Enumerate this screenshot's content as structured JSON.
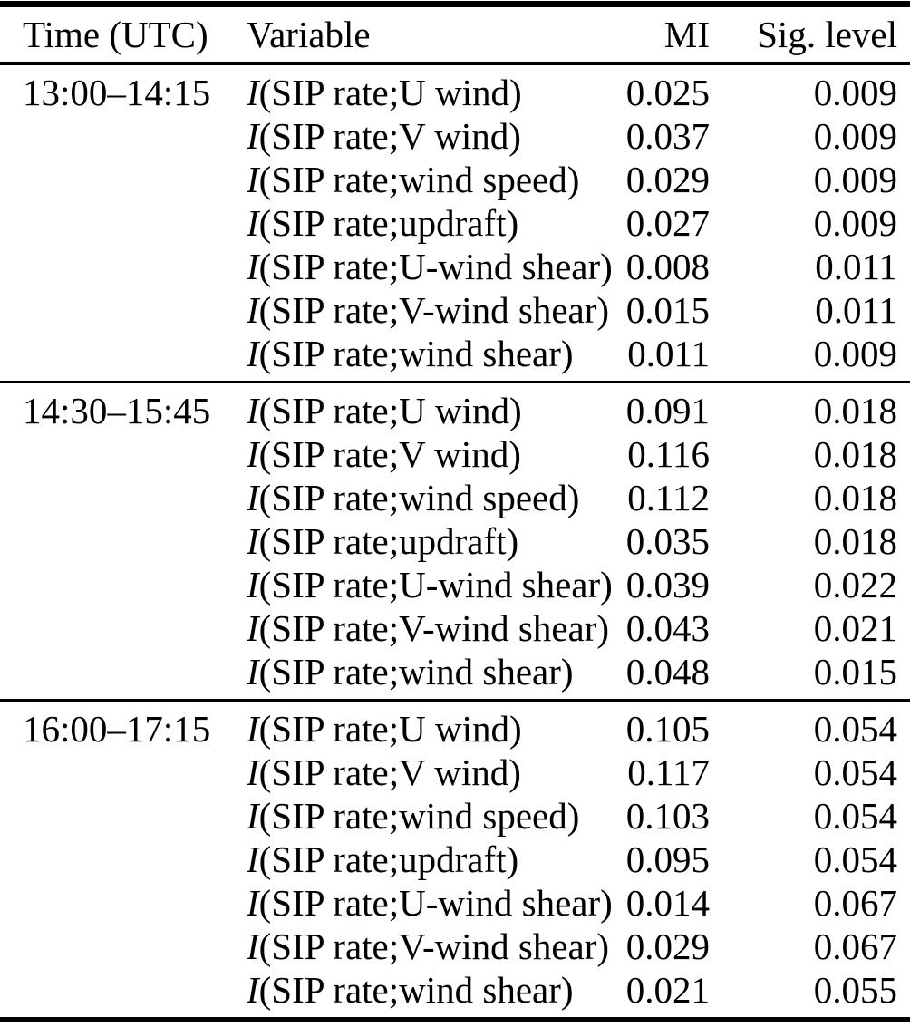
{
  "table": {
    "function_symbol": "I",
    "headers": [
      "Time (UTC)",
      "Variable",
      "MI",
      "Sig. level"
    ],
    "groups": [
      {
        "time": "13:00–14:15",
        "rows": [
          {
            "variable": "(SIP rate;U wind)",
            "mi": "0.025",
            "sig": "0.009"
          },
          {
            "variable": "(SIP rate;V wind)",
            "mi": "0.037",
            "sig": "0.009"
          },
          {
            "variable": "(SIP rate;wind speed)",
            "mi": "0.029",
            "sig": "0.009"
          },
          {
            "variable": "(SIP rate;updraft)",
            "mi": "0.027",
            "sig": "0.009"
          },
          {
            "variable": "(SIP rate;U-wind shear)",
            "mi": "0.008",
            "sig": "0.011"
          },
          {
            "variable": "(SIP rate;V-wind shear)",
            "mi": "0.015",
            "sig": "0.011"
          },
          {
            "variable": "(SIP rate;wind shear)",
            "mi": "0.011",
            "sig": "0.009"
          }
        ]
      },
      {
        "time": "14:30–15:45",
        "rows": [
          {
            "variable": "(SIP rate;U wind)",
            "mi": "0.091",
            "sig": "0.018"
          },
          {
            "variable": "(SIP rate;V wind)",
            "mi": "0.116",
            "sig": "0.018"
          },
          {
            "variable": "(SIP rate;wind speed)",
            "mi": "0.112",
            "sig": "0.018"
          },
          {
            "variable": "(SIP rate;updraft)",
            "mi": "0.035",
            "sig": "0.018"
          },
          {
            "variable": "(SIP rate;U-wind shear)",
            "mi": "0.039",
            "sig": "0.022"
          },
          {
            "variable": "(SIP rate;V-wind shear)",
            "mi": "0.043",
            "sig": "0.021"
          },
          {
            "variable": "(SIP rate;wind shear)",
            "mi": "0.048",
            "sig": "0.015"
          }
        ]
      },
      {
        "time": "16:00–17:15",
        "rows": [
          {
            "variable": "(SIP rate;U wind)",
            "mi": "0.105",
            "sig": "0.054"
          },
          {
            "variable": "(SIP rate;V wind)",
            "mi": "0.117",
            "sig": "0.054"
          },
          {
            "variable": "(SIP rate;wind speed)",
            "mi": "0.103",
            "sig": "0.054"
          },
          {
            "variable": "(SIP rate;updraft)",
            "mi": "0.095",
            "sig": "0.054"
          },
          {
            "variable": "(SIP rate;U-wind shear)",
            "mi": "0.014",
            "sig": "0.067"
          },
          {
            "variable": "(SIP rate;V-wind shear)",
            "mi": "0.029",
            "sig": "0.067"
          },
          {
            "variable": "(SIP rate;wind shear)",
            "mi": "0.021",
            "sig": "0.055"
          }
        ]
      }
    ]
  }
}
